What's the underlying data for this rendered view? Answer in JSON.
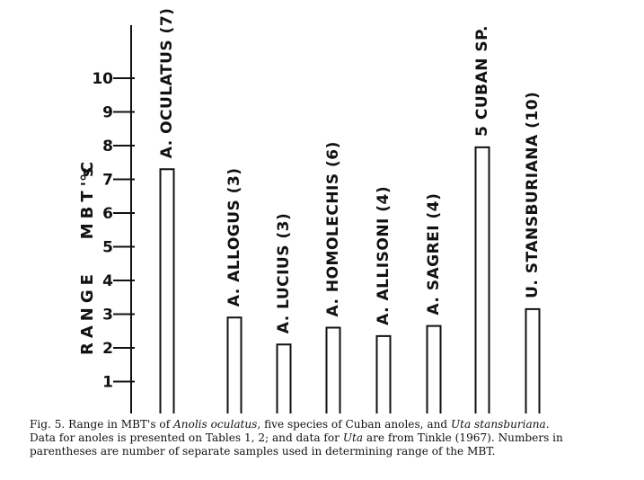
{
  "chart_data": {
    "type": "bar",
    "ylabel": "RANGE MBT's",
    "yunit": "°C",
    "ylim": [
      0,
      11
    ],
    "yticks": [
      1,
      2,
      3,
      4,
      5,
      6,
      7,
      8,
      9,
      10
    ],
    "grid": false,
    "categories": [
      "A. OCULATUS (7)",
      "A. ALLOGUS (3)",
      "A. LUCIUS (3)",
      "A. HOMOLECHIS (6)",
      "A. ALLISONI (4)",
      "A. SAGREI (4)",
      "5 CUBAN SP.",
      "U. STANSBURIANA (10)"
    ],
    "values": [
      7.3,
      2.9,
      2.1,
      2.6,
      2.35,
      2.65,
      7.95,
      3.15
    ]
  },
  "caption": {
    "line1_a": "Fig. 5.   Range in MBT's of ",
    "line1_b": "Anolis oculatus",
    "line1_c": ", five species of Cuban anoles, and ",
    "line1_d": "Uta stansburiana",
    "line1_e": ".",
    "line2_a": "Data for anoles is presented on Tables 1, 2; and data for ",
    "line2_b": "Uta",
    "line2_c": " are from Tinkle (1967).  Numbers in",
    "line3": "parentheses are number of separate samples used in determining range of the MBT."
  }
}
